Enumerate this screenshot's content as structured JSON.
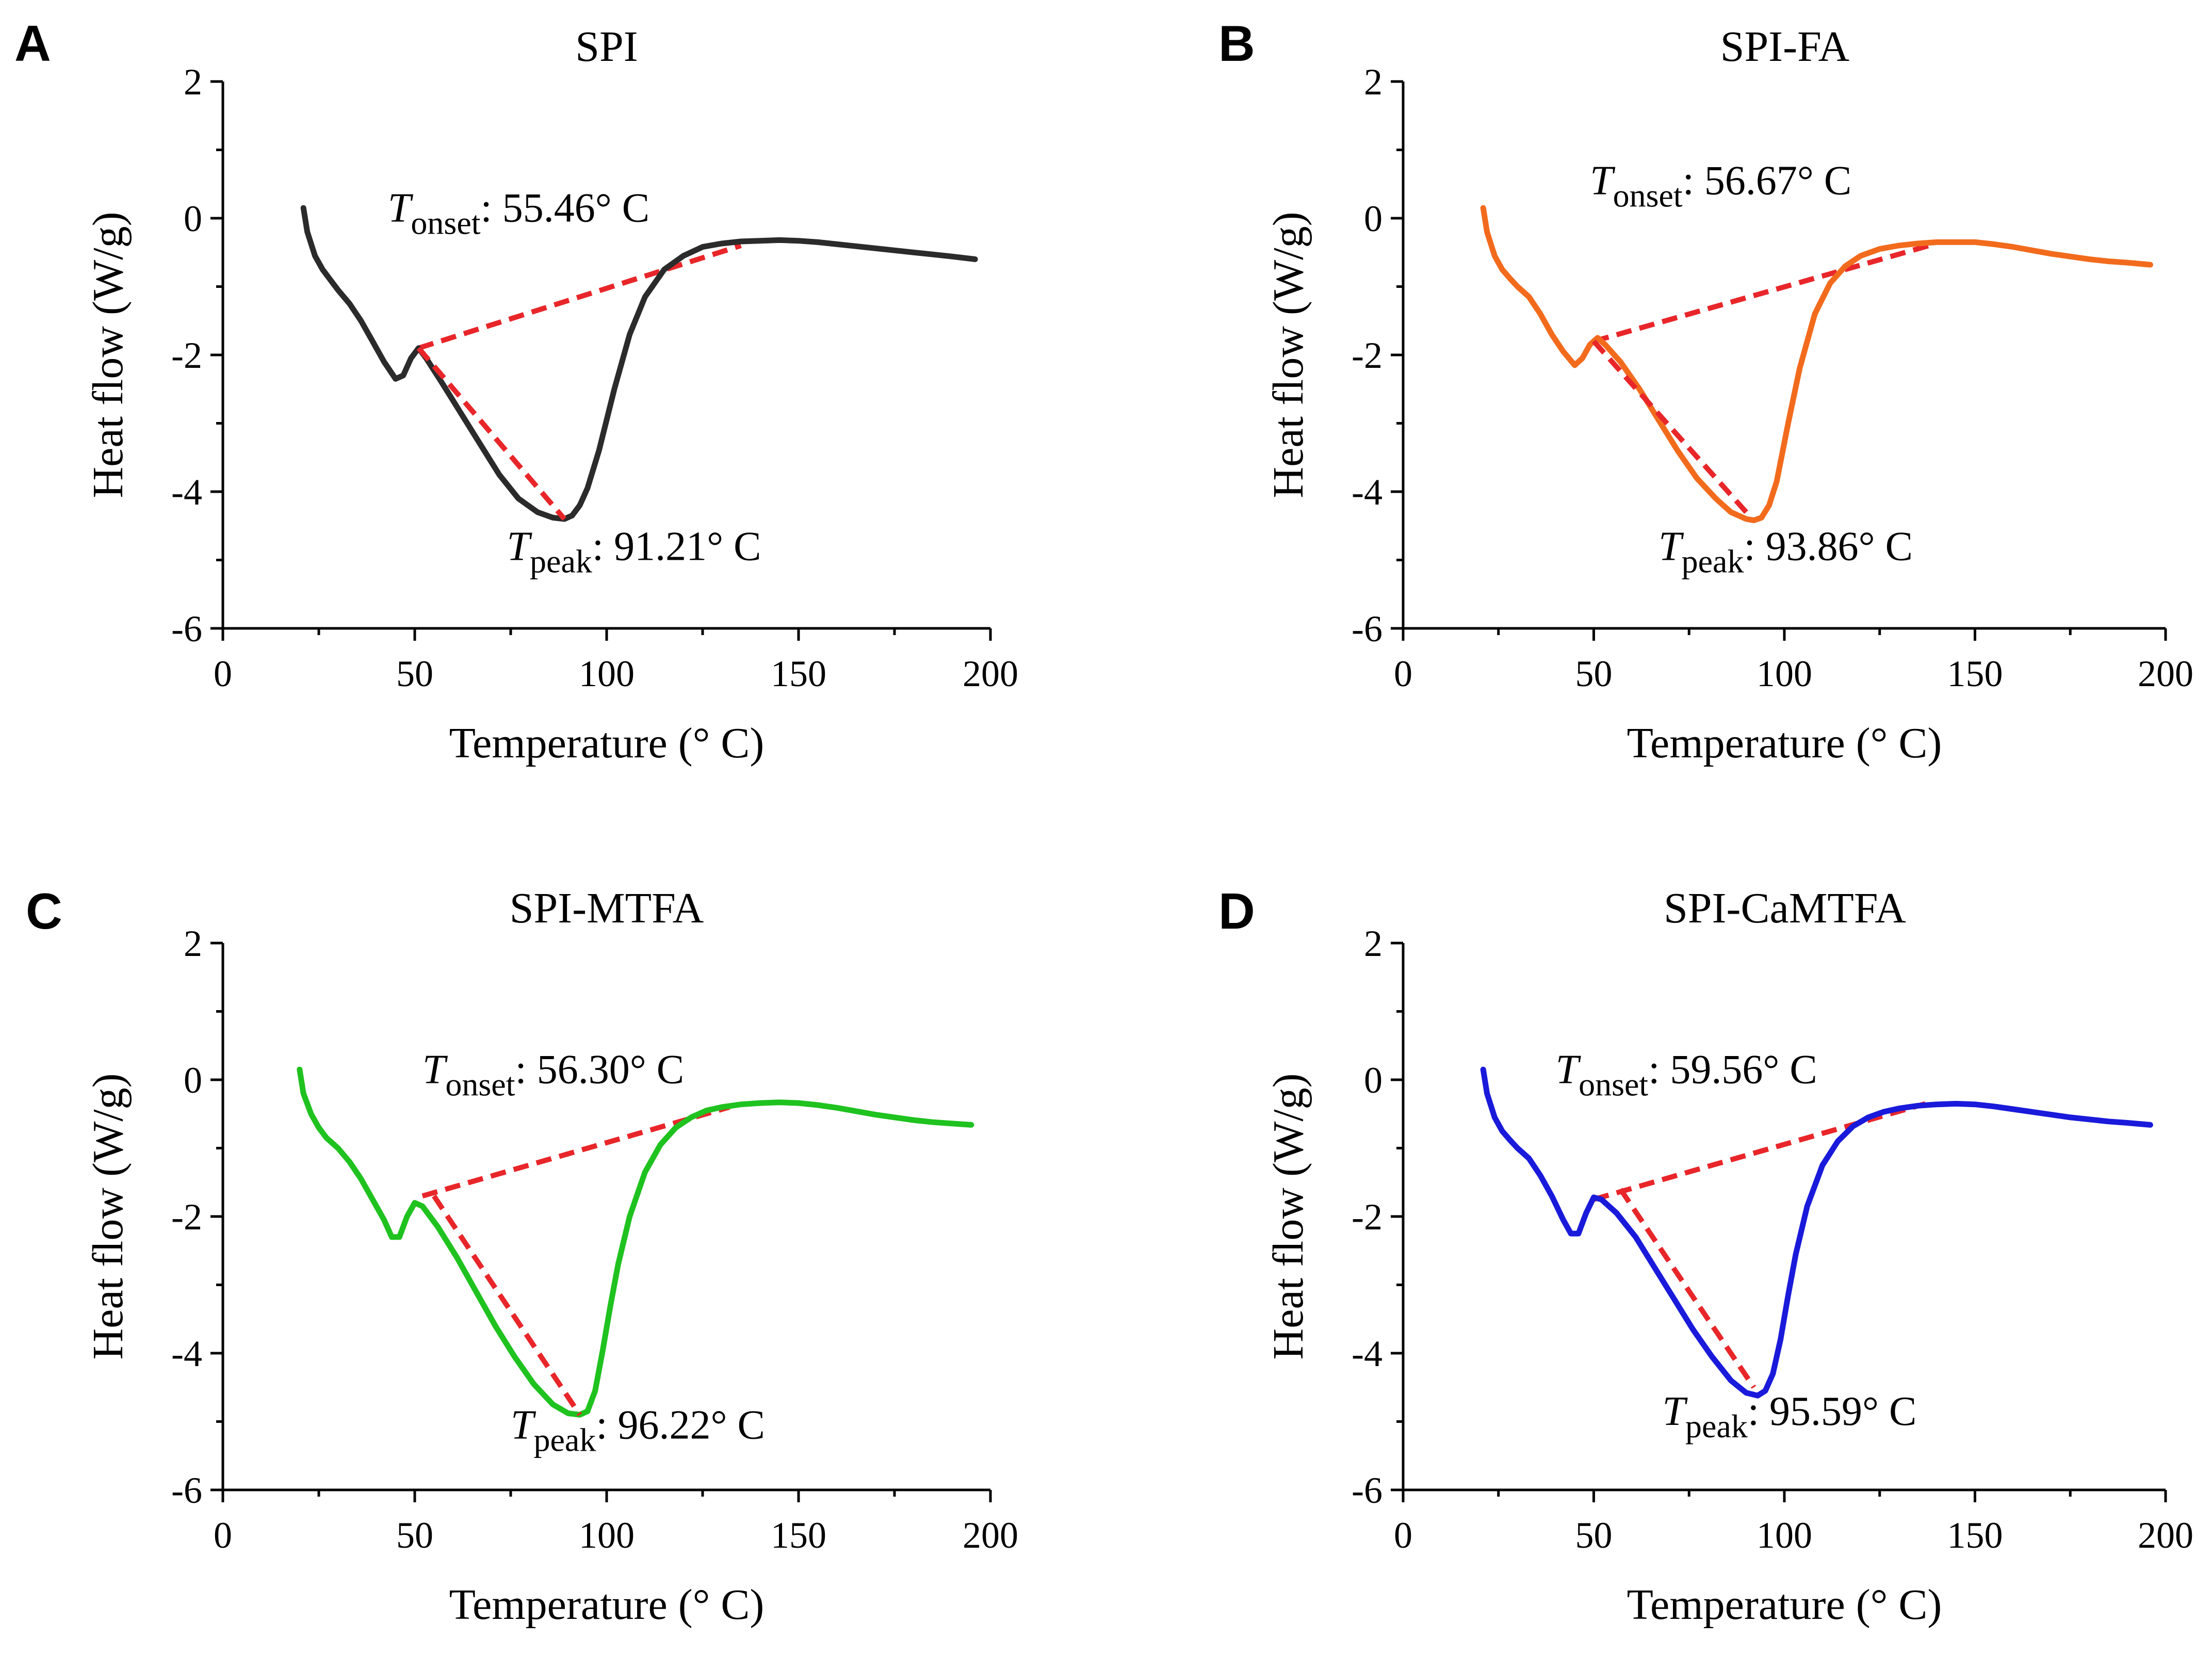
{
  "chart_data": [
    {
      "panel": "A",
      "type": "line",
      "title": "SPI",
      "xlabel": "Temperature (° C)",
      "ylabel": "Heat flow (W/g)",
      "xlim": [
        0,
        200
      ],
      "ylim": [
        -6,
        2
      ],
      "xticks": [
        0,
        50,
        100,
        150,
        200
      ],
      "xtick_labels": [
        "0",
        "50",
        "100",
        "150",
        "200"
      ],
      "yticks": [
        2,
        0,
        -2,
        -4,
        -6
      ],
      "ytick_labels": [
        "2",
        "0",
        "-2",
        "-4",
        "-6"
      ],
      "series": [
        {
          "name": "SPI",
          "color": "#2b2b2b",
          "x": [
            21,
            22,
            24,
            26,
            28,
            30,
            33,
            36,
            39,
            42,
            45,
            47,
            49,
            51,
            53,
            57,
            62,
            67,
            72,
            77,
            82,
            86,
            89,
            91,
            93,
            95,
            98,
            102,
            106,
            110,
            115,
            120,
            125,
            130,
            135,
            140,
            145,
            150,
            155,
            160,
            165,
            170,
            175,
            180,
            185,
            190,
            196
          ],
          "y": [
            0.15,
            -0.2,
            -0.55,
            -0.75,
            -0.9,
            -1.05,
            -1.25,
            -1.5,
            -1.8,
            -2.1,
            -2.35,
            -2.3,
            -2.05,
            -1.9,
            -2.05,
            -2.4,
            -2.85,
            -3.3,
            -3.75,
            -4.1,
            -4.3,
            -4.38,
            -4.4,
            -4.35,
            -4.2,
            -3.95,
            -3.4,
            -2.5,
            -1.7,
            -1.15,
            -0.75,
            -0.55,
            -0.42,
            -0.37,
            -0.34,
            -0.33,
            -0.32,
            -0.33,
            -0.35,
            -0.38,
            -0.41,
            -0.44,
            -0.47,
            -0.5,
            -0.53,
            -0.56,
            -0.6
          ]
        }
      ],
      "onset_line": {
        "x": [
          51,
          135
        ],
        "y": [
          -1.9,
          -0.4
        ]
      },
      "peak_line": {
        "x": [
          51,
          89
        ],
        "y": [
          -1.9,
          -4.4
        ]
      },
      "onset_annotation": {
        "symbol": "T",
        "subscript": "onset",
        "value": ": 55.46° C",
        "x": 43,
        "y": -0.05
      },
      "peak_annotation": {
        "symbol": "T",
        "subscript": "peak",
        "value": ": 91.21° C",
        "x": 74,
        "y": -5.0
      }
    },
    {
      "panel": "B",
      "type": "line",
      "title": "SPI-FA",
      "xlabel": "Temperature (° C)",
      "ylabel": "Heat flow (W/g)",
      "xlim": [
        0,
        200
      ],
      "ylim": [
        -6,
        2
      ],
      "xticks": [
        0,
        50,
        100,
        150,
        200
      ],
      "xtick_labels": [
        "0",
        "50",
        "100",
        "150",
        "200"
      ],
      "yticks": [
        2,
        0,
        -2,
        -4,
        -6
      ],
      "ytick_labels": [
        "2",
        "0",
        "-2",
        "-4",
        "-6"
      ],
      "series": [
        {
          "name": "SPI-FA",
          "color": "#f26b1d",
          "x": [
            21,
            22,
            24,
            26,
            28,
            30,
            33,
            36,
            39,
            42,
            45,
            47,
            49,
            51,
            53,
            57,
            62,
            67,
            72,
            77,
            82,
            86,
            90,
            92,
            94,
            96,
            98,
            101,
            104,
            108,
            112,
            116,
            120,
            125,
            130,
            135,
            140,
            145,
            150,
            155,
            160,
            165,
            170,
            175,
            180,
            185,
            190,
            196
          ],
          "y": [
            0.15,
            -0.2,
            -0.55,
            -0.75,
            -0.88,
            -1.0,
            -1.15,
            -1.4,
            -1.7,
            -1.95,
            -2.15,
            -2.05,
            -1.85,
            -1.75,
            -1.85,
            -2.1,
            -2.5,
            -2.95,
            -3.4,
            -3.8,
            -4.1,
            -4.3,
            -4.4,
            -4.42,
            -4.38,
            -4.2,
            -3.85,
            -3.0,
            -2.2,
            -1.4,
            -0.95,
            -0.7,
            -0.55,
            -0.45,
            -0.4,
            -0.37,
            -0.35,
            -0.35,
            -0.35,
            -0.38,
            -0.42,
            -0.47,
            -0.52,
            -0.56,
            -0.6,
            -0.63,
            -0.65,
            -0.68
          ]
        }
      ],
      "onset_line": {
        "x": [
          50,
          138
        ],
        "y": [
          -1.8,
          -0.4
        ]
      },
      "peak_line": {
        "x": [
          50,
          90
        ],
        "y": [
          -1.8,
          -4.3
        ]
      },
      "onset_annotation": {
        "symbol": "T",
        "subscript": "onset",
        "value": ": 56.67° C",
        "x": 49,
        "y": 0.35
      },
      "peak_annotation": {
        "symbol": "T",
        "subscript": "peak",
        "value": ": 93.86° C",
        "x": 67,
        "y": -5.0
      }
    },
    {
      "panel": "C",
      "type": "line",
      "title": "SPI-MTFA",
      "xlabel": "Temperature (° C)",
      "ylabel": "Heat flow (W/g)",
      "xlim": [
        0,
        200
      ],
      "ylim": [
        -6,
        2
      ],
      "xticks": [
        0,
        50,
        100,
        150,
        200
      ],
      "xtick_labels": [
        "0",
        "50",
        "100",
        "150",
        "200"
      ],
      "yticks": [
        2,
        0,
        -2,
        -4,
        -6
      ],
      "ytick_labels": [
        "2",
        "0",
        "-2",
        "-4",
        "-6"
      ],
      "series": [
        {
          "name": "SPI-MTFA",
          "color": "#1fc21f",
          "x": [
            20,
            21,
            23,
            25,
            27,
            30,
            33,
            36,
            39,
            42,
            44,
            46,
            48,
            50,
            52,
            56,
            61,
            66,
            71,
            76,
            81,
            86,
            90,
            93,
            95,
            97,
            99,
            101,
            103,
            106,
            110,
            114,
            118,
            122,
            126,
            130,
            135,
            140,
            145,
            150,
            155,
            160,
            165,
            170,
            175,
            180,
            185,
            190,
            195
          ],
          "y": [
            0.15,
            -0.2,
            -0.5,
            -0.7,
            -0.85,
            -1.0,
            -1.2,
            -1.45,
            -1.75,
            -2.05,
            -2.3,
            -2.3,
            -2.0,
            -1.8,
            -1.85,
            -2.15,
            -2.6,
            -3.1,
            -3.6,
            -4.05,
            -4.45,
            -4.75,
            -4.88,
            -4.9,
            -4.85,
            -4.55,
            -3.95,
            -3.3,
            -2.7,
            -2.0,
            -1.35,
            -0.95,
            -0.7,
            -0.55,
            -0.45,
            -0.4,
            -0.36,
            -0.34,
            -0.33,
            -0.34,
            -0.37,
            -0.41,
            -0.46,
            -0.51,
            -0.55,
            -0.59,
            -0.62,
            -0.64,
            -0.66
          ]
        }
      ],
      "onset_line": {
        "x": [
          52,
          132
        ],
        "y": [
          -1.7,
          -0.4
        ]
      },
      "peak_line": {
        "x": [
          55,
          93
        ],
        "y": [
          -1.7,
          -4.9
        ]
      },
      "onset_annotation": {
        "symbol": "T",
        "subscript": "onset",
        "value": ": 56.30° C",
        "x": 52,
        "y": -0.05
      },
      "peak_annotation": {
        "symbol": "T",
        "subscript": "peak",
        "value": ": 96.22° C",
        "x": 75,
        "y": -5.25
      }
    },
    {
      "panel": "D",
      "type": "line",
      "title": "SPI-CaMTFA",
      "xlabel": "Temperature (° C)",
      "ylabel": "Heat flow (W/g)",
      "xlim": [
        0,
        200
      ],
      "ylim": [
        -6,
        2
      ],
      "xticks": [
        0,
        50,
        100,
        150,
        200
      ],
      "xtick_labels": [
        "0",
        "50",
        "100",
        "150",
        "200"
      ],
      "yticks": [
        2,
        0,
        -2,
        -4,
        -6
      ],
      "ytick_labels": [
        "2",
        "0",
        "-2",
        "-4",
        "-6"
      ],
      "series": [
        {
          "name": "SPI-CaMTFA",
          "color": "#1a1adb",
          "x": [
            21,
            22,
            24,
            26,
            28,
            30,
            33,
            36,
            39,
            42,
            44,
            46,
            48,
            50,
            52,
            56,
            61,
            66,
            71,
            76,
            81,
            86,
            90,
            93,
            95,
            97,
            99,
            101,
            103,
            106,
            110,
            114,
            118,
            122,
            126,
            130,
            135,
            140,
            145,
            150,
            155,
            160,
            165,
            170,
            175,
            180,
            185,
            190,
            196
          ],
          "y": [
            0.15,
            -0.2,
            -0.55,
            -0.75,
            -0.88,
            -1.0,
            -1.15,
            -1.4,
            -1.7,
            -2.05,
            -2.25,
            -2.25,
            -1.95,
            -1.72,
            -1.75,
            -1.95,
            -2.3,
            -2.75,
            -3.2,
            -3.65,
            -4.05,
            -4.4,
            -4.58,
            -4.62,
            -4.55,
            -4.3,
            -3.8,
            -3.15,
            -2.55,
            -1.85,
            -1.25,
            -0.9,
            -0.68,
            -0.55,
            -0.47,
            -0.42,
            -0.38,
            -0.36,
            -0.35,
            -0.36,
            -0.39,
            -0.43,
            -0.47,
            -0.51,
            -0.55,
            -0.58,
            -0.61,
            -0.63,
            -0.66
          ]
        }
      ],
      "onset_line": {
        "x": [
          50,
          137
        ],
        "y": [
          -1.75,
          -0.35
        ]
      },
      "peak_line": {
        "x": [
          57,
          92
        ],
        "y": [
          -1.6,
          -4.5
        ]
      },
      "onset_annotation": {
        "symbol": "T",
        "subscript": "onset",
        "value": ": 59.56° C",
        "x": 40,
        "y": -0.05
      },
      "peak_annotation": {
        "symbol": "T",
        "subscript": "peak",
        "value": ": 95.59° C",
        "x": 68,
        "y": -5.05
      }
    }
  ]
}
